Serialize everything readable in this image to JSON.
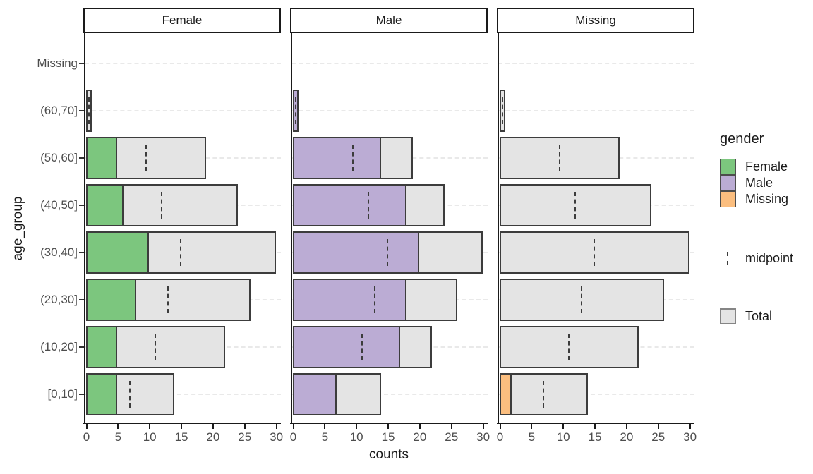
{
  "figure": {
    "x_axis_title": "counts",
    "y_axis_title": "age_group"
  },
  "legend": {
    "title": "gender",
    "entries": [
      {
        "label": "Female",
        "color": "#7cc67e"
      },
      {
        "label": "Male",
        "color": "#bbacd4"
      },
      {
        "label": "Missing",
        "color": "#fbbe7f"
      }
    ],
    "midpoint_label": "midpoint",
    "total_label": "Total"
  },
  "chart_data": {
    "type": "bar",
    "orientation": "horizontal",
    "facet_variable": "gender",
    "xlabel": "counts",
    "ylabel": "age_group",
    "xlim": [
      0,
      30
    ],
    "x_ticks": [
      0,
      5,
      10,
      15,
      20,
      25,
      30
    ],
    "categories_top_to_bottom": [
      "Missing",
      "(60,70]",
      "(50,60]",
      "(40,50]",
      "(30,40]",
      "(20,30]",
      "(10,20]",
      "[0,10]"
    ],
    "totals": [
      0,
      1,
      19,
      24,
      30,
      26,
      22,
      14
    ],
    "midpoints": [
      null,
      0.5,
      9.5,
      12,
      15,
      13,
      11,
      7
    ],
    "facets": [
      {
        "label": "Female",
        "color": "#7cc67e",
        "values": [
          0,
          0,
          5,
          6,
          10,
          8,
          5,
          5
        ]
      },
      {
        "label": "Male",
        "color": "#bbacd4",
        "values": [
          0,
          1,
          14,
          18,
          20,
          18,
          17,
          7
        ]
      },
      {
        "label": "Missing",
        "color": "#fbbe7f",
        "values": [
          0,
          0,
          0,
          0,
          0,
          0,
          0,
          2
        ]
      }
    ],
    "legend_position": "right",
    "grid": "dashed horizontal line at each category"
  },
  "colors": {
    "total_fill": "#e4e4e4",
    "bar_border": "#3c3c3c",
    "gridline": "#e9e9e9",
    "axis_line": "#1a1a1a",
    "tick_text": "#4d4d4d",
    "strip_border": "#1a1a1a",
    "strip_bg": "#ffffff"
  }
}
